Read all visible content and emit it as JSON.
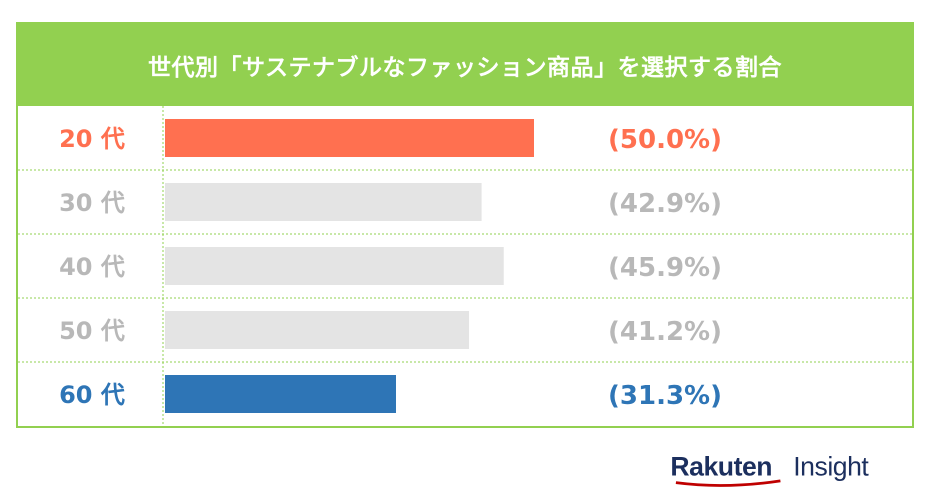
{
  "chart_data": {
    "type": "bar",
    "title": "世代別「サステナブルなファッション商品」を選択する割合",
    "categories": [
      "20 代",
      "30 代",
      "40 代",
      "50 代",
      "60 代"
    ],
    "values": [
      50.0,
      42.9,
      45.9,
      41.2,
      31.3
    ],
    "value_labels": [
      "(50.0%)",
      "(42.9%)",
      "(45.9%)",
      "(41.2%)",
      "(31.3%)"
    ],
    "colors": [
      "#ff7050",
      "#e4e4e4",
      "#e4e4e4",
      "#e4e4e4",
      "#2e75b6"
    ],
    "text_colors": [
      "#ff7050",
      "#b8b8b8",
      "#b8b8b8",
      "#b8b8b8",
      "#2e75b6"
    ],
    "xlim": [
      0,
      50.0
    ],
    "grid": false
  },
  "logo": {
    "brand": "Rakuten",
    "product": "Insight",
    "color": "#1c2f5e",
    "swoosh_color": "#bf0000"
  }
}
